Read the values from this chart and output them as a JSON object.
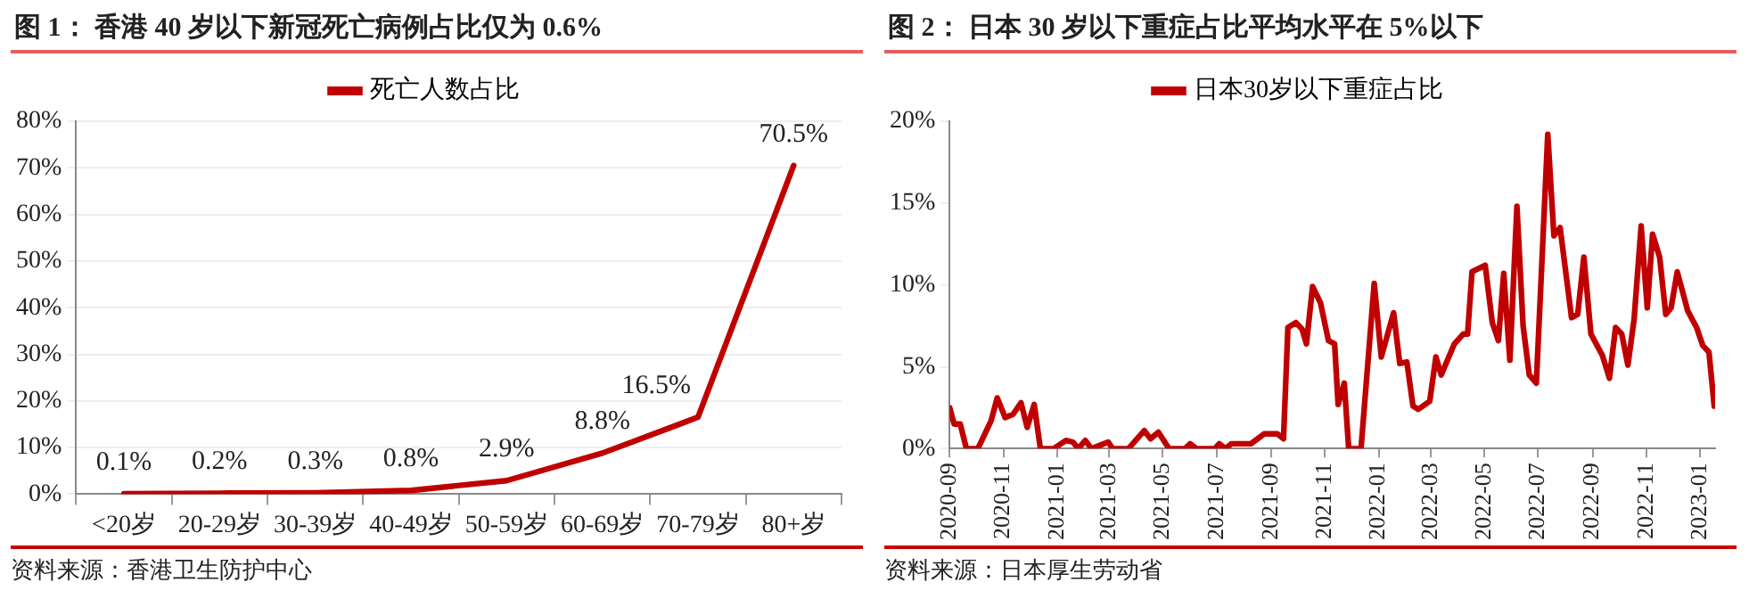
{
  "chart_data": [
    {
      "type": "line",
      "title": "图 1：  香港 40 岁以下新冠死亡病例占比仅为 0.6%",
      "categories": [
        "<20岁",
        "20-29岁",
        "30-39岁",
        "40-49岁",
        "50-59岁",
        "60-69岁",
        "70-79岁",
        "80+岁"
      ],
      "series": [
        {
          "name": "死亡人数占比",
          "color": "#c00000",
          "values": [
            0.1,
            0.2,
            0.3,
            0.8,
            2.9,
            8.8,
            16.5,
            70.5
          ],
          "value_labels": [
            "0.1%",
            "0.2%",
            "0.3%",
            "0.8%",
            "2.9%",
            "8.8%",
            "16.5%",
            "70.5%"
          ]
        }
      ],
      "ylim": [
        0,
        80
      ],
      "yticks": [
        {
          "value": 0,
          "label": "0%"
        },
        {
          "value": 10,
          "label": "10%"
        },
        {
          "value": 20,
          "label": "20%"
        },
        {
          "value": 30,
          "label": "30%"
        },
        {
          "value": 40,
          "label": "40%"
        },
        {
          "value": 50,
          "label": "50%"
        },
        {
          "value": 60,
          "label": "60%"
        },
        {
          "value": 70,
          "label": "70%"
        },
        {
          "value": 80,
          "label": "80%"
        }
      ],
      "grid": "y",
      "legend": "top",
      "marker": "none",
      "line_style": "solid",
      "annotations": [
        "资料来源：香港卫生防护中心"
      ]
    },
    {
      "type": "line",
      "title": "图 2：  日本 30 岁以下重症占比平均水平在 5%以下",
      "x": [
        "2020-09-01",
        "2020-09-06",
        "2020-09-13",
        "2020-09-20",
        "2020-10-03",
        "2020-10-18",
        "2020-10-25",
        "2020-11-03",
        "2020-11-12",
        "2020-11-21",
        "2020-11-28",
        "2020-12-06",
        "2020-12-13",
        "2020-12-28",
        "2021-01-11",
        "2021-01-19",
        "2021-01-25",
        "2021-02-02",
        "2021-02-09",
        "2021-02-28",
        "2021-03-05",
        "2021-03-23",
        "2021-04-10",
        "2021-04-17",
        "2021-04-26",
        "2021-05-08",
        "2021-05-26",
        "2021-06-01",
        "2021-06-08",
        "2021-06-29",
        "2021-07-04",
        "2021-07-11",
        "2021-07-18",
        "2021-08-09",
        "2021-08-24",
        "2021-09-08",
        "2021-09-15",
        "2021-09-20",
        "2021-09-29",
        "2021-10-06",
        "2021-10-11",
        "2021-10-18",
        "2021-10-27",
        "2021-11-05",
        "2021-11-12",
        "2021-11-16",
        "2021-11-23",
        "2021-11-28",
        "2021-12-12",
        "2021-12-27",
        "2022-01-04",
        "2022-01-18",
        "2022-01-25",
        "2022-02-02",
        "2022-02-09",
        "2022-02-15",
        "2022-02-28",
        "2022-03-07",
        "2022-03-13",
        "2022-03-28",
        "2022-04-07",
        "2022-04-12",
        "2022-04-17",
        "2022-05-02",
        "2022-05-10",
        "2022-05-17",
        "2022-05-23",
        "2022-05-30",
        "2022-06-07",
        "2022-06-14",
        "2022-06-21",
        "2022-06-29",
        "2022-07-12",
        "2022-07-19",
        "2022-07-26",
        "2022-08-08",
        "2022-08-15",
        "2022-08-22",
        "2022-08-30",
        "2022-09-12",
        "2022-09-20",
        "2022-09-27",
        "2022-10-04",
        "2022-10-11",
        "2022-10-18",
        "2022-10-26",
        "2022-11-02",
        "2022-11-08",
        "2022-11-16",
        "2022-11-23",
        "2022-11-29",
        "2022-12-06",
        "2022-12-18",
        "2022-12-28",
        "2023-01-04",
        "2023-01-11",
        "2023-01-17"
      ],
      "series": [
        {
          "name": "日本30岁以下重症占比",
          "color": "#c00000",
          "values": [
            2.5,
            1.5,
            1.5,
            0,
            0,
            1.7,
            3.1,
            1.9,
            2.1,
            2.8,
            1.3,
            2.7,
            0,
            0,
            0.5,
            0.4,
            0,
            0.5,
            0,
            0.4,
            0,
            0,
            1.1,
            0.6,
            1.0,
            0,
            0,
            0.3,
            0,
            0,
            0.3,
            0,
            0.3,
            0.3,
            0.9,
            0.9,
            0.6,
            7.4,
            7.7,
            7.3,
            6.4,
            9.9,
            8.9,
            6.6,
            6.4,
            2.7,
            4.0,
            0,
            0,
            10.1,
            5.6,
            8.3,
            5.2,
            5.3,
            2.6,
            2.4,
            2.9,
            5.6,
            4.5,
            6.4,
            7.0,
            7.0,
            10.8,
            11.2,
            7.7,
            6.6,
            10.7,
            5.4,
            14.8,
            7.5,
            4.5,
            4.0,
            19.2,
            13.0,
            13.5,
            8.0,
            8.2,
            11.7,
            7.0,
            5.7,
            4.3,
            7.4,
            7.0,
            5.1,
            7.9,
            13.6,
            8.6,
            13.1,
            11.7,
            8.2,
            8.6,
            10.8,
            8.4,
            7.4,
            6.3,
            5.9,
            2.6
          ]
        }
      ],
      "xlim": [
        "2020-09-01",
        "2023-01-18"
      ],
      "xticks": [
        "2020-09",
        "2020-11",
        "2021-01",
        "2021-03",
        "2021-05",
        "2021-07",
        "2021-09",
        "2021-11",
        "2022-01",
        "2022-03",
        "2022-05",
        "2022-07",
        "2022-09",
        "2022-11",
        "2023-01"
      ],
      "ylim": [
        0,
        20
      ],
      "yticks": [
        {
          "value": 0,
          "label": "0%"
        },
        {
          "value": 5,
          "label": "5%"
        },
        {
          "value": 10,
          "label": "10%"
        },
        {
          "value": 15,
          "label": "15%"
        },
        {
          "value": 20,
          "label": "20%"
        }
      ],
      "grid": false,
      "legend": "top",
      "marker": "none",
      "line_style": "solid",
      "annotations": [
        "资料来源：日本厚生劳动省"
      ]
    }
  ]
}
